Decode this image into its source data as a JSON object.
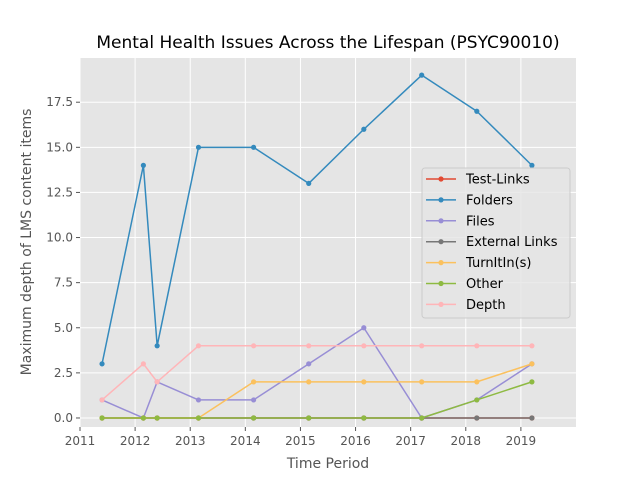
{
  "chart_data": {
    "type": "line",
    "title": "Mental Health Issues Across the Lifespan (PSYC90010)",
    "xlabel": "Time Period",
    "ylabel": "Maximum depth of LMS content items",
    "xlim": [
      2011,
      2020
    ],
    "ylim": [
      -0.5,
      19.95
    ],
    "xticks": [
      {
        "value": 2011,
        "label": "2011"
      },
      {
        "value": 2012,
        "label": "2012"
      },
      {
        "value": 2013,
        "label": "2013"
      },
      {
        "value": 2014,
        "label": "2014"
      },
      {
        "value": 2015,
        "label": "2015"
      },
      {
        "value": 2016,
        "label": "2016"
      },
      {
        "value": 2017,
        "label": "2017"
      },
      {
        "value": 2018,
        "label": "2018"
      },
      {
        "value": 2019,
        "label": "2019"
      }
    ],
    "yticks": [
      {
        "value": 0,
        "label": "0.0"
      },
      {
        "value": 2.5,
        "label": "2.5"
      },
      {
        "value": 5,
        "label": "5.0"
      },
      {
        "value": 7.5,
        "label": "7.5"
      },
      {
        "value": 10,
        "label": "10.0"
      },
      {
        "value": 12.5,
        "label": "12.5"
      },
      {
        "value": 15,
        "label": "15.0"
      },
      {
        "value": 17.5,
        "label": "17.5"
      }
    ],
    "grid": true,
    "legend_position": "center-right",
    "x": [
      2011.4,
      2012.15,
      2012.4,
      2013.15,
      2014.15,
      2015.15,
      2016.15,
      2017.2,
      2018.2,
      2019.2
    ],
    "series": [
      {
        "name": "Test-Links",
        "color": "#e24a33",
        "values": [
          0,
          0,
          0,
          0,
          0,
          0,
          0,
          0,
          0,
          0
        ]
      },
      {
        "name": "Folders",
        "color": "#348abd",
        "values": [
          3,
          14,
          4,
          15,
          15,
          13,
          16,
          19,
          17,
          14
        ]
      },
      {
        "name": "Files",
        "color": "#988ed5",
        "values": [
          1,
          0,
          2,
          1,
          1,
          3,
          5,
          0,
          1,
          3
        ]
      },
      {
        "name": "External Links",
        "color": "#777777",
        "values": [
          0,
          0,
          0,
          0,
          0,
          0,
          0,
          0,
          0,
          0
        ]
      },
      {
        "name": "TurnItIn(s)",
        "color": "#fbc15e",
        "values": [
          0,
          0,
          0,
          0,
          2,
          2,
          2,
          2,
          2,
          3
        ]
      },
      {
        "name": "Other",
        "color": "#8eba42",
        "values": [
          0,
          0,
          0,
          0,
          0,
          0,
          0,
          0,
          1,
          2
        ]
      },
      {
        "name": "Depth",
        "color": "#ffb5b8",
        "values": [
          1,
          3,
          2,
          4,
          4,
          4,
          4,
          4,
          4,
          4
        ]
      }
    ]
  }
}
